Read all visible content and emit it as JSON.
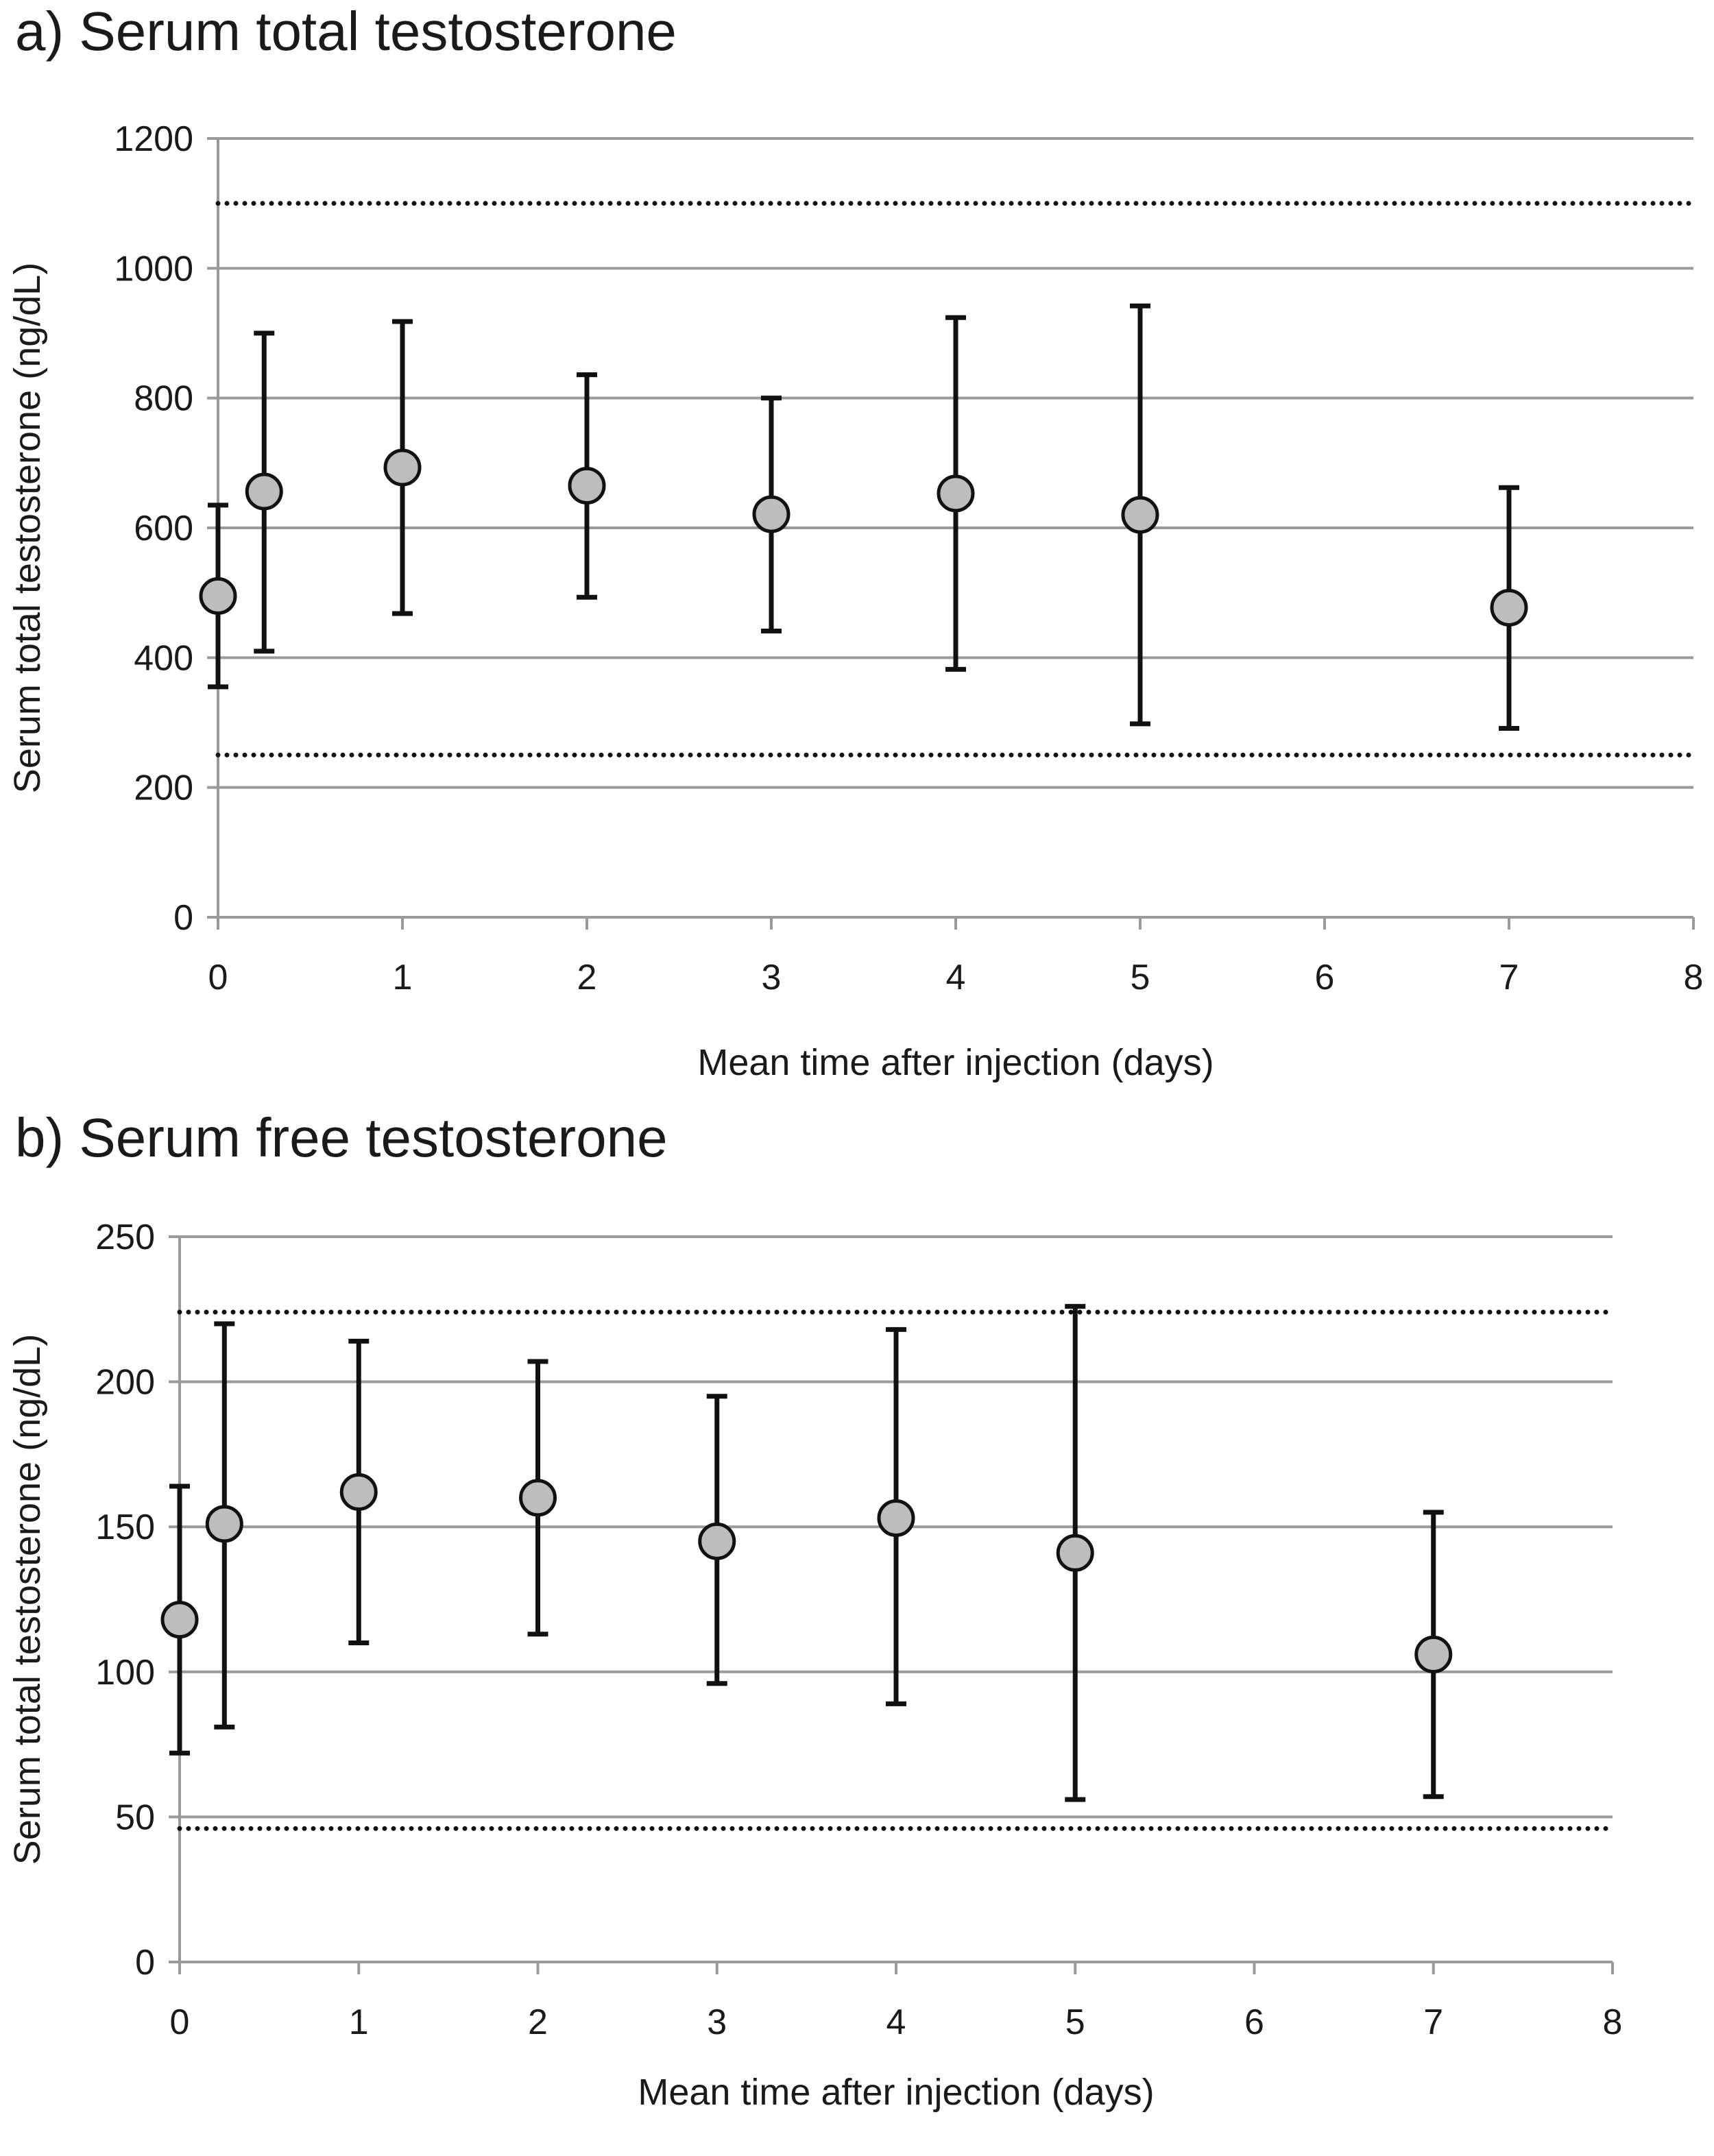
{
  "chart_data": [
    {
      "type": "scatter",
      "panel_title": "a) Serum total testosterone",
      "xlabel": "Mean time after injection (days)",
      "ylabel": "Serum total testosterone (ng/dL)",
      "xlim": [
        0,
        8
      ],
      "ylim": [
        0,
        1200
      ],
      "x_ticks": [
        "0",
        "1",
        "2",
        "3",
        "4",
        "5",
        "6",
        "7",
        "8"
      ],
      "y_ticks": [
        "0",
        "200",
        "400",
        "600",
        "800",
        "1000",
        "1200"
      ],
      "grid": "horizontal",
      "reference_lines": [
        1100,
        250
      ],
      "series": [
        {
          "points": [
            {
              "x": 0,
              "y": 495,
              "lower": 355,
              "upper": 635
            },
            {
              "x": 0.25,
              "y": 656,
              "lower": 410,
              "upper": 900
            },
            {
              "x": 1,
              "y": 693,
              "lower": 468,
              "upper": 918
            },
            {
              "x": 2,
              "y": 665,
              "lower": 493,
              "upper": 836
            },
            {
              "x": 3,
              "y": 621,
              "lower": 441,
              "upper": 800
            },
            {
              "x": 4,
              "y": 653,
              "lower": 382,
              "upper": 924
            },
            {
              "x": 5,
              "y": 620,
              "lower": 298,
              "upper": 942
            },
            {
              "x": 7,
              "y": 477,
              "lower": 291,
              "upper": 662
            }
          ]
        }
      ]
    },
    {
      "type": "scatter",
      "panel_title": "b) Serum free testosterone",
      "xlabel": "Mean time after injection (days)",
      "ylabel": "Serum total testosterone (ng/dL)",
      "xlim": [
        0,
        8
      ],
      "ylim": [
        0,
        250
      ],
      "x_ticks": [
        "0",
        "1",
        "2",
        "3",
        "4",
        "5",
        "6",
        "7",
        "8"
      ],
      "y_ticks": [
        "0",
        "50",
        "100",
        "150",
        "200",
        "250"
      ],
      "grid": "horizontal",
      "reference_lines": [
        224,
        46
      ],
      "series": [
        {
          "points": [
            {
              "x": 0,
              "y": 118,
              "lower": 72,
              "upper": 164
            },
            {
              "x": 0.25,
              "y": 151,
              "lower": 81,
              "upper": 220
            },
            {
              "x": 1,
              "y": 162,
              "lower": 110,
              "upper": 214
            },
            {
              "x": 2,
              "y": 160,
              "lower": 113,
              "upper": 207
            },
            {
              "x": 3,
              "y": 145,
              "lower": 96,
              "upper": 195
            },
            {
              "x": 4,
              "y": 153,
              "lower": 89,
              "upper": 218
            },
            {
              "x": 5,
              "y": 141,
              "lower": 56,
              "upper": 226
            },
            {
              "x": 7,
              "y": 106,
              "lower": 57,
              "upper": 155
            }
          ]
        }
      ]
    }
  ]
}
